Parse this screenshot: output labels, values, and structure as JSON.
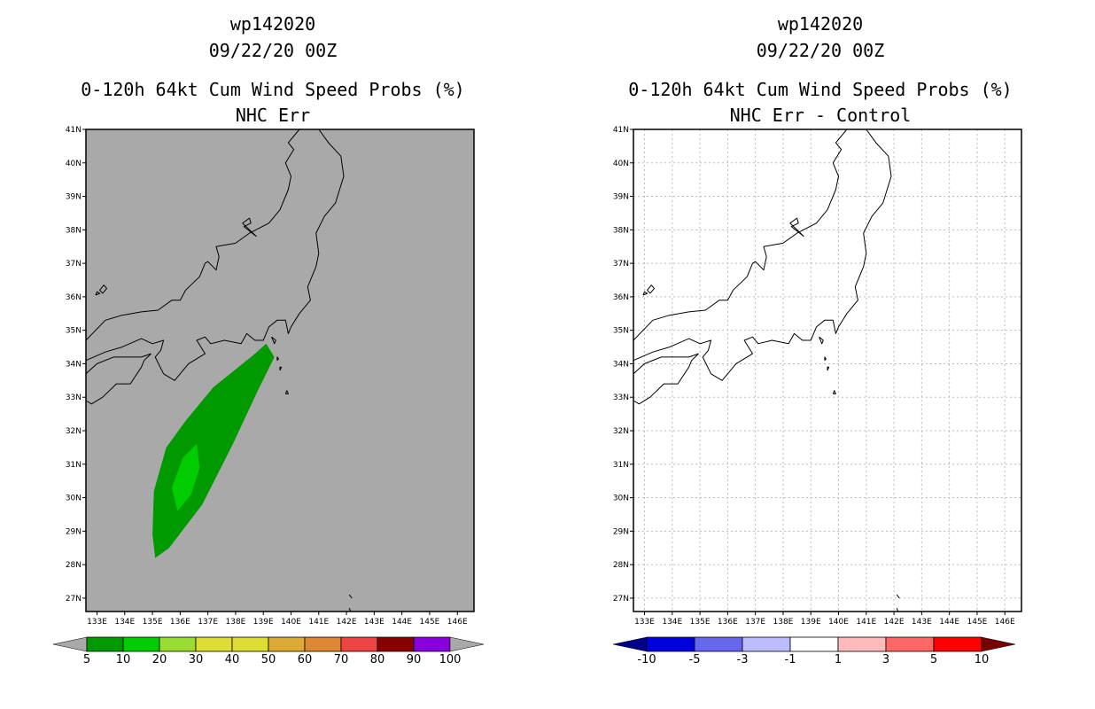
{
  "panels": [
    {
      "storm_id": "wp142020",
      "datetime": "09/22/20 00Z",
      "title": "0-120h 64kt Cum Wind Speed Probs (%)",
      "subtitle": "NHC Err",
      "background_color": "#a9a9a9",
      "gridlines": false,
      "colorbar": {
        "labels": [
          "5",
          "10",
          "20",
          "30",
          "40",
          "50",
          "60",
          "70",
          "80",
          "90",
          "100"
        ],
        "colors": [
          "#009900",
          "#00cc00",
          "#99dd33",
          "#dddd33",
          "#dddd33",
          "#ddaa33",
          "#dd8833",
          "#ee4444",
          "#880000",
          "#8800dd"
        ],
        "end_colors": [
          "#a9a9a9",
          "#a9a9a9"
        ]
      }
    },
    {
      "storm_id": "wp142020",
      "datetime": "09/22/20 00Z",
      "title": "0-120h 64kt Cum Wind Speed Probs (%)",
      "subtitle": "NHC Err - Control",
      "background_color": "#ffffff",
      "gridlines": true,
      "colorbar": {
        "labels": [
          "-10",
          "-5",
          "-3",
          "-1",
          "1",
          "3",
          "5",
          "10"
        ],
        "colors": [
          "#0000dd",
          "#6666ee",
          "#bbbbff",
          "#ffffff",
          "#ffbbbb",
          "#ff6666",
          "#ff0000"
        ],
        "end_colors": [
          "#000088",
          "#770000"
        ]
      }
    }
  ],
  "map": {
    "lat_labels": [
      "41N",
      "40N",
      "39N",
      "38N",
      "37N",
      "36N",
      "35N",
      "34N",
      "33N",
      "32N",
      "31N",
      "30N",
      "29N",
      "28N",
      "27N"
    ],
    "lon_labels": [
      "133E",
      "134E",
      "135E",
      "136E",
      "137E",
      "138E",
      "139E",
      "140E",
      "141E",
      "142E",
      "143E",
      "144E",
      "145E",
      "146E"
    ],
    "lat_range": [
      26.6,
      41.0
    ],
    "lon_range": [
      132.6,
      146.6
    ]
  },
  "probability_contours": [
    {
      "level": 5,
      "color": "#009900",
      "points": [
        [
          139.1,
          34.6
        ],
        [
          138.7,
          34.3
        ],
        [
          138.1,
          33.9
        ],
        [
          137.2,
          33.3
        ],
        [
          136.2,
          32.3
        ],
        [
          135.5,
          31.5
        ],
        [
          135.05,
          30.2
        ],
        [
          135.0,
          28.9
        ],
        [
          135.1,
          28.2
        ],
        [
          135.6,
          28.5
        ],
        [
          136.8,
          29.8
        ],
        [
          137.9,
          31.6
        ],
        [
          138.8,
          33.2
        ],
        [
          139.4,
          34.2
        ]
      ]
    },
    {
      "level": 10,
      "color": "#00cc00",
      "points": [
        [
          136.6,
          31.6
        ],
        [
          136.1,
          31.2
        ],
        [
          135.7,
          30.3
        ],
        [
          135.9,
          29.6
        ],
        [
          136.4,
          30.1
        ],
        [
          136.7,
          30.9
        ]
      ]
    }
  ],
  "coastlines": [
    [
      [
        132.6,
        34.7
      ],
      [
        133.3,
        35.3
      ],
      [
        133.9,
        35.45
      ],
      [
        134.6,
        35.55
      ],
      [
        135.2,
        35.6
      ],
      [
        135.7,
        35.9
      ],
      [
        136.0,
        35.9
      ],
      [
        136.2,
        36.2
      ],
      [
        136.7,
        36.6
      ],
      [
        136.9,
        37.0
      ],
      [
        137.0,
        37.05
      ],
      [
        137.3,
        36.8
      ],
      [
        137.4,
        37.2
      ],
      [
        137.3,
        37.5
      ],
      [
        138.0,
        37.6
      ],
      [
        138.5,
        37.9
      ],
      [
        139.2,
        38.2
      ],
      [
        139.6,
        38.6
      ],
      [
        139.9,
        39.2
      ],
      [
        140.0,
        39.6
      ],
      [
        139.8,
        40.0
      ],
      [
        140.1,
        40.4
      ],
      [
        139.9,
        40.6
      ],
      [
        140.3,
        41.0
      ]
    ],
    [
      [
        141.0,
        41.0
      ],
      [
        141.35,
        40.6
      ],
      [
        141.8,
        40.2
      ],
      [
        141.9,
        39.6
      ],
      [
        141.6,
        38.8
      ],
      [
        141.2,
        38.4
      ],
      [
        140.9,
        37.9
      ],
      [
        141.0,
        37.3
      ],
      [
        140.9,
        36.9
      ],
      [
        140.6,
        36.3
      ],
      [
        140.7,
        35.9
      ],
      [
        140.3,
        35.5
      ],
      [
        140.0,
        35.1
      ],
      [
        139.9,
        34.9
      ],
      [
        139.8,
        35.3
      ],
      [
        139.5,
        35.3
      ],
      [
        139.2,
        35.1
      ],
      [
        139.0,
        34.7
      ],
      [
        138.7,
        34.7
      ],
      [
        138.4,
        34.9
      ],
      [
        138.2,
        34.6
      ],
      [
        137.6,
        34.7
      ],
      [
        137.1,
        34.6
      ],
      [
        136.9,
        34.8
      ],
      [
        136.6,
        34.7
      ],
      [
        136.9,
        34.3
      ],
      [
        136.3,
        34.0
      ],
      [
        135.8,
        33.5
      ],
      [
        135.4,
        33.7
      ],
      [
        135.1,
        34.2
      ],
      [
        135.3,
        34.4
      ],
      [
        135.4,
        34.7
      ],
      [
        135.0,
        34.6
      ],
      [
        134.6,
        34.75
      ],
      [
        133.9,
        34.5
      ],
      [
        133.3,
        34.35
      ],
      [
        132.6,
        34.1
      ]
    ],
    [
      [
        134.95,
        34.3
      ],
      [
        134.7,
        34.1
      ],
      [
        134.6,
        33.9
      ],
      [
        134.2,
        33.4
      ],
      [
        133.7,
        33.4
      ],
      [
        133.2,
        33.0
      ],
      [
        132.8,
        32.8
      ],
      [
        132.6,
        32.9
      ]
    ],
    [
      [
        132.6,
        33.7
      ],
      [
        133.0,
        34.0
      ],
      [
        133.6,
        34.2
      ],
      [
        134.2,
        34.2
      ],
      [
        134.6,
        34.2
      ],
      [
        134.95,
        34.3
      ]
    ],
    [
      [
        138.75,
        37.8
      ],
      [
        138.5,
        38.0
      ],
      [
        138.25,
        38.2
      ],
      [
        138.5,
        38.35
      ],
      [
        138.55,
        38.2
      ],
      [
        138.3,
        38.1
      ],
      [
        138.6,
        37.9
      ],
      [
        138.75,
        37.8
      ]
    ],
    [
      [
        133.2,
        36.1
      ],
      [
        133.35,
        36.25
      ],
      [
        133.25,
        36.35
      ],
      [
        133.1,
        36.2
      ],
      [
        133.2,
        36.1
      ]
    ],
    [
      [
        132.95,
        36.05
      ],
      [
        133.1,
        36.1
      ],
      [
        133.0,
        36.15
      ],
      [
        132.95,
        36.05
      ]
    ],
    [
      [
        139.3,
        34.8
      ],
      [
        139.45,
        34.7
      ],
      [
        139.4,
        34.6
      ],
      [
        139.3,
        34.8
      ]
    ],
    [
      [
        139.5,
        34.1
      ],
      [
        139.55,
        34.15
      ],
      [
        139.5,
        34.2
      ],
      [
        139.5,
        34.1
      ]
    ],
    [
      [
        139.6,
        33.8
      ],
      [
        139.65,
        33.9
      ],
      [
        139.6,
        33.9
      ],
      [
        139.6,
        33.8
      ]
    ],
    [
      [
        139.8,
        33.1
      ],
      [
        139.9,
        33.1
      ],
      [
        139.85,
        33.2
      ],
      [
        139.8,
        33.1
      ]
    ],
    [
      [
        142.1,
        27.1
      ],
      [
        142.2,
        27.0
      ]
    ],
    [
      [
        142.1,
        26.7
      ],
      [
        142.15,
        26.6
      ]
    ]
  ]
}
